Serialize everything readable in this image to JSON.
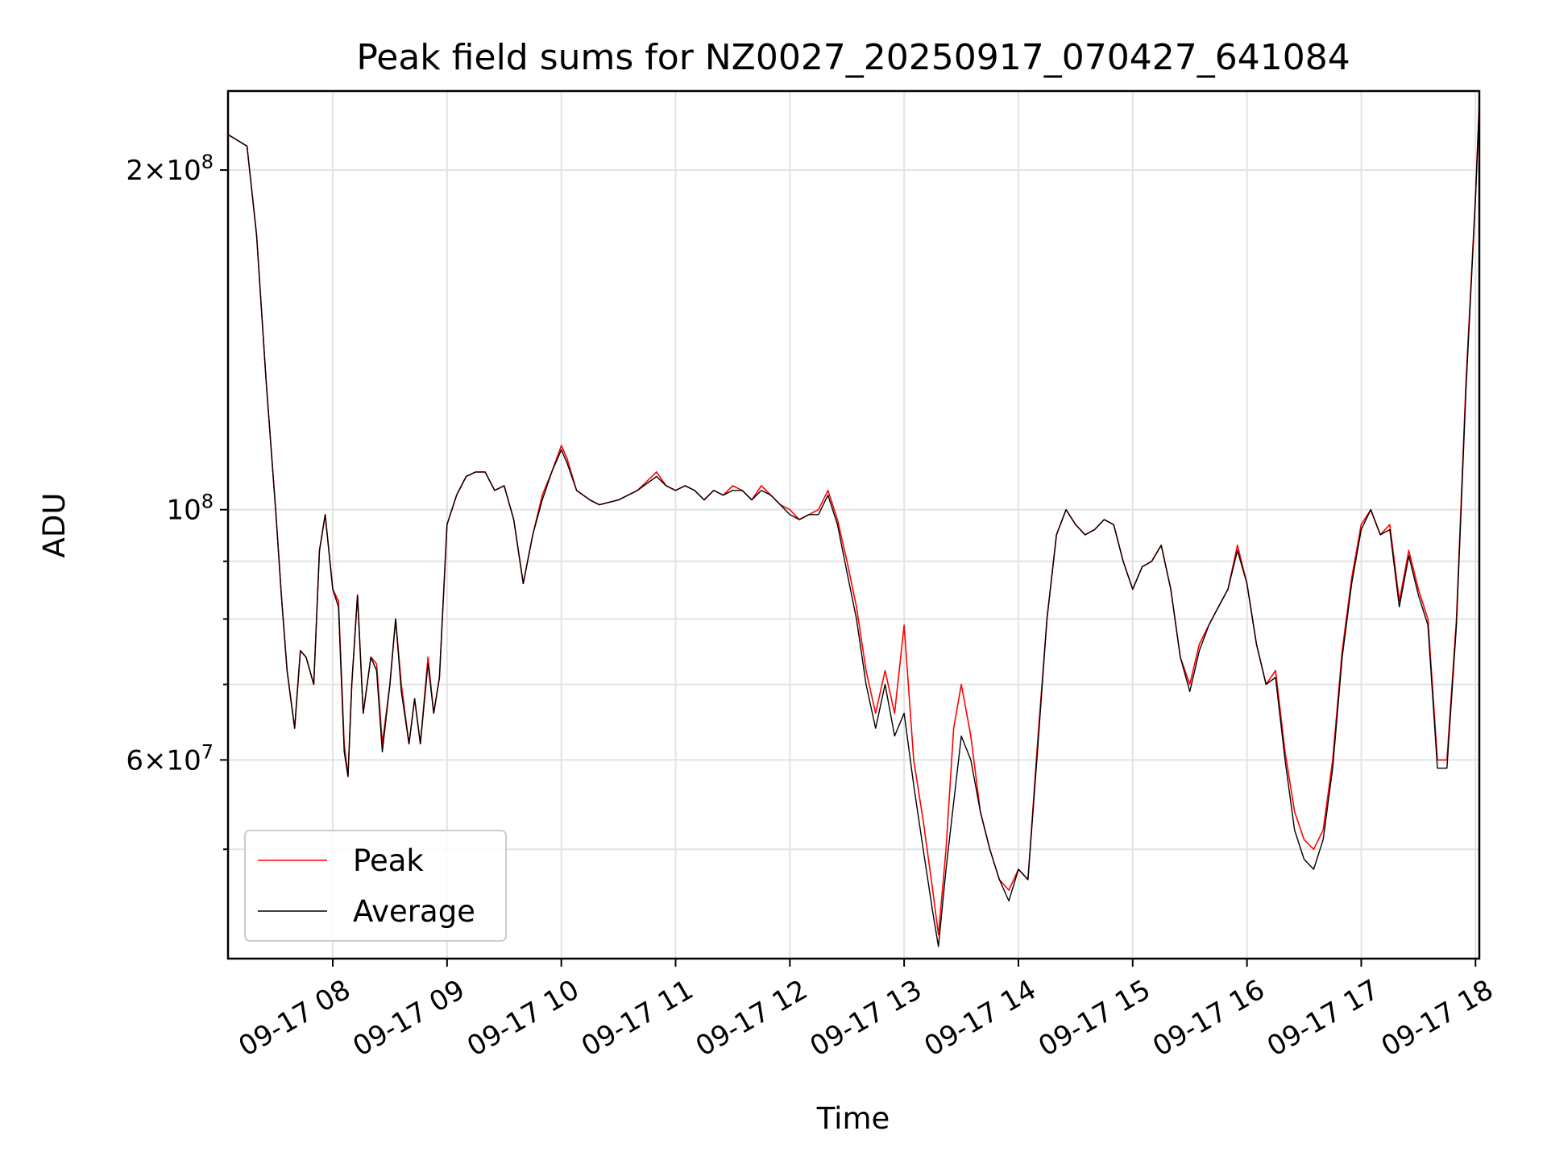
{
  "chart_data": {
    "type": "line",
    "title": "Peak field sums for NZ0027_20250917_070427_641084",
    "xlabel": "Time",
    "ylabel": "ADU",
    "y_scale": "log",
    "xlim": [
      "09-17 07:05",
      "09-17 18:02"
    ],
    "ylim": [
      40000000,
      235000000
    ],
    "grid": true,
    "legend_position": "lower-left",
    "x_ticks": [
      {
        "label": "09-17 08",
        "h": 8
      },
      {
        "label": "09-17 09",
        "h": 9
      },
      {
        "label": "09-17 10",
        "h": 10
      },
      {
        "label": "09-17 11",
        "h": 11
      },
      {
        "label": "09-17 12",
        "h": 12
      },
      {
        "label": "09-17 13",
        "h": 13
      },
      {
        "label": "09-17 14",
        "h": 14
      },
      {
        "label": "09-17 15",
        "h": 15
      },
      {
        "label": "09-17 16",
        "h": 16
      },
      {
        "label": "09-17 17",
        "h": 17
      },
      {
        "label": "09-17 18",
        "h": 18
      }
    ],
    "y_major_ticks": [
      {
        "value": 60000000,
        "mantissa": "6",
        "base": "10",
        "exp": "7"
      },
      {
        "value": 100000000,
        "mantissa": "",
        "base": "10",
        "exp": "8"
      },
      {
        "value": 200000000,
        "mantissa": "2",
        "base": "10",
        "exp": "8"
      }
    ],
    "y_minor_ticks": [
      50000000,
      70000000,
      80000000,
      90000000
    ],
    "x": [
      "09-17 07:05",
      "09-17 07:15",
      "09-17 07:20",
      "09-17 07:25",
      "09-17 07:30",
      "09-17 07:33",
      "09-17 07:36",
      "09-17 07:40",
      "09-17 07:43",
      "09-17 07:46",
      "09-17 07:50",
      "09-17 07:53",
      "09-17 07:56",
      "09-17 08:00",
      "09-17 08:03",
      "09-17 08:06",
      "09-17 08:08",
      "09-17 08:10",
      "09-17 08:13",
      "09-17 08:16",
      "09-17 08:20",
      "09-17 08:23",
      "09-17 08:26",
      "09-17 08:30",
      "09-17 08:33",
      "09-17 08:36",
      "09-17 08:40",
      "09-17 08:43",
      "09-17 08:46",
      "09-17 08:50",
      "09-17 08:53",
      "09-17 08:56",
      "09-17 09:00",
      "09-17 09:05",
      "09-17 09:10",
      "09-17 09:15",
      "09-17 09:20",
      "09-17 09:25",
      "09-17 09:30",
      "09-17 09:35",
      "09-17 09:40",
      "09-17 09:45",
      "09-17 09:50",
      "09-17 09:55",
      "09-17 10:00",
      "09-17 10:03",
      "09-17 10:08",
      "09-17 10:15",
      "09-17 10:20",
      "09-17 10:30",
      "09-17 10:40",
      "09-17 10:50",
      "09-17 10:55",
      "09-17 11:00",
      "09-17 11:05",
      "09-17 11:10",
      "09-17 11:15",
      "09-17 11:20",
      "09-17 11:25",
      "09-17 11:30",
      "09-17 11:35",
      "09-17 11:40",
      "09-17 11:45",
      "09-17 11:50",
      "09-17 11:55",
      "09-17 12:00",
      "09-17 12:05",
      "09-17 12:10",
      "09-17 12:15",
      "09-17 12:20",
      "09-17 12:25",
      "09-17 12:30",
      "09-17 12:35",
      "09-17 12:40",
      "09-17 12:45",
      "09-17 12:50",
      "09-17 12:55",
      "09-17 13:00",
      "09-17 13:05",
      "09-17 13:10",
      "09-17 13:15",
      "09-17 13:18",
      "09-17 13:22",
      "09-17 13:26",
      "09-17 13:30",
      "09-17 13:35",
      "09-17 13:40",
      "09-17 13:45",
      "09-17 13:50",
      "09-17 13:55",
      "09-17 14:00",
      "09-17 14:05",
      "09-17 14:10",
      "09-17 14:15",
      "09-17 14:20",
      "09-17 14:25",
      "09-17 14:30",
      "09-17 14:35",
      "09-17 14:40",
      "09-17 14:45",
      "09-17 14:50",
      "09-17 14:55",
      "09-17 15:00",
      "09-17 15:05",
      "09-17 15:10",
      "09-17 15:15",
      "09-17 15:20",
      "09-17 15:25",
      "09-17 15:30",
      "09-17 15:35",
      "09-17 15:40",
      "09-17 15:45",
      "09-17 15:50",
      "09-17 15:55",
      "09-17 16:00",
      "09-17 16:05",
      "09-17 16:10",
      "09-17 16:15",
      "09-17 16:20",
      "09-17 16:25",
      "09-17 16:30",
      "09-17 16:35",
      "09-17 16:40",
      "09-17 16:45",
      "09-17 16:50",
      "09-17 16:55",
      "09-17 17:00",
      "09-17 17:05",
      "09-17 17:10",
      "09-17 17:15",
      "09-17 17:20",
      "09-17 17:25",
      "09-17 17:30",
      "09-17 17:35",
      "09-17 17:40",
      "09-17 17:45",
      "09-17 17:50",
      "09-17 17:55",
      "09-17 18:00",
      "09-17 18:02"
    ],
    "series": [
      {
        "name": "Peak",
        "color": "#ff0000",
        "values": [
          215000000,
          210000000,
          175000000,
          130000000,
          100000000,
          84000000,
          72000000,
          64000000,
          75000000,
          74000000,
          70000000,
          92000000,
          99000000,
          85000000,
          83000000,
          62000000,
          58000000,
          70000000,
          84000000,
          66000000,
          74000000,
          73000000,
          62000000,
          70000000,
          80000000,
          70000000,
          62000000,
          68000000,
          62000000,
          74000000,
          66000000,
          71000000,
          97000000,
          103000000,
          107000000,
          108000000,
          108000000,
          104000000,
          105000000,
          98000000,
          86000000,
          95000000,
          103000000,
          108000000,
          114000000,
          111000000,
          104000000,
          102000000,
          101000000,
          102000000,
          104000000,
          108000000,
          105000000,
          104000000,
          105000000,
          104000000,
          102000000,
          104000000,
          103000000,
          105000000,
          104000000,
          102000000,
          105000000,
          103000000,
          101000000,
          100000000,
          98000000,
          99000000,
          100000000,
          104000000,
          98000000,
          90000000,
          82000000,
          72000000,
          66000000,
          72000000,
          66000000,
          79000000,
          60000000,
          53000000,
          46000000,
          42000000,
          50000000,
          64000000,
          70000000,
          63000000,
          54000000,
          50000000,
          47000000,
          46000000,
          48000000,
          47000000,
          62000000,
          80000000,
          95000000,
          100000000,
          97000000,
          95000000,
          96000000,
          98000000,
          97000000,
          90000000,
          85000000,
          89000000,
          90000000,
          93000000,
          85000000,
          74000000,
          70000000,
          76000000,
          79000000,
          82000000,
          85000000,
          93000000,
          86000000,
          76000000,
          70000000,
          72000000,
          61000000,
          54000000,
          51000000,
          50000000,
          52000000,
          60000000,
          75000000,
          87000000,
          97000000,
          100000000,
          95000000,
          97000000,
          83000000,
          92000000,
          85000000,
          80000000,
          60000000,
          60000000,
          80000000,
          130000000,
          190000000,
          230000000
        ]
      },
      {
        "name": "Average",
        "color": "#000000",
        "values": [
          215000000,
          210000000,
          175000000,
          130000000,
          100000000,
          84000000,
          72000000,
          64000000,
          75000000,
          74000000,
          70000000,
          92000000,
          99000000,
          85000000,
          82000000,
          61000000,
          58000000,
          70000000,
          84000000,
          66000000,
          74000000,
          72000000,
          61000000,
          70000000,
          80000000,
          69000000,
          62000000,
          68000000,
          62000000,
          73000000,
          66000000,
          71000000,
          97000000,
          103000000,
          107000000,
          108000000,
          108000000,
          104000000,
          105000000,
          98000000,
          86000000,
          95000000,
          102000000,
          108000000,
          113000000,
          110000000,
          104000000,
          102000000,
          101000000,
          102000000,
          104000000,
          107000000,
          105000000,
          104000000,
          105000000,
          104000000,
          102000000,
          104000000,
          103000000,
          104000000,
          104000000,
          102000000,
          104000000,
          103000000,
          101000000,
          99000000,
          98000000,
          99000000,
          99000000,
          103000000,
          97000000,
          88000000,
          80000000,
          70000000,
          64000000,
          70000000,
          63000000,
          66000000,
          57000000,
          50000000,
          44000000,
          41000000,
          48000000,
          55000000,
          63000000,
          60000000,
          54000000,
          50000000,
          47000000,
          45000000,
          48000000,
          47000000,
          61000000,
          80000000,
          95000000,
          100000000,
          97000000,
          95000000,
          96000000,
          98000000,
          97000000,
          90000000,
          85000000,
          89000000,
          90000000,
          93000000,
          85000000,
          74000000,
          69000000,
          75000000,
          79000000,
          82000000,
          85000000,
          92000000,
          86000000,
          76000000,
          70000000,
          71000000,
          60000000,
          52000000,
          49000000,
          48000000,
          51000000,
          59000000,
          74000000,
          86000000,
          96000000,
          100000000,
          95000000,
          96000000,
          82000000,
          91000000,
          84000000,
          79000000,
          59000000,
          59000000,
          79000000,
          128000000,
          189000000,
          229000000
        ]
      }
    ]
  }
}
